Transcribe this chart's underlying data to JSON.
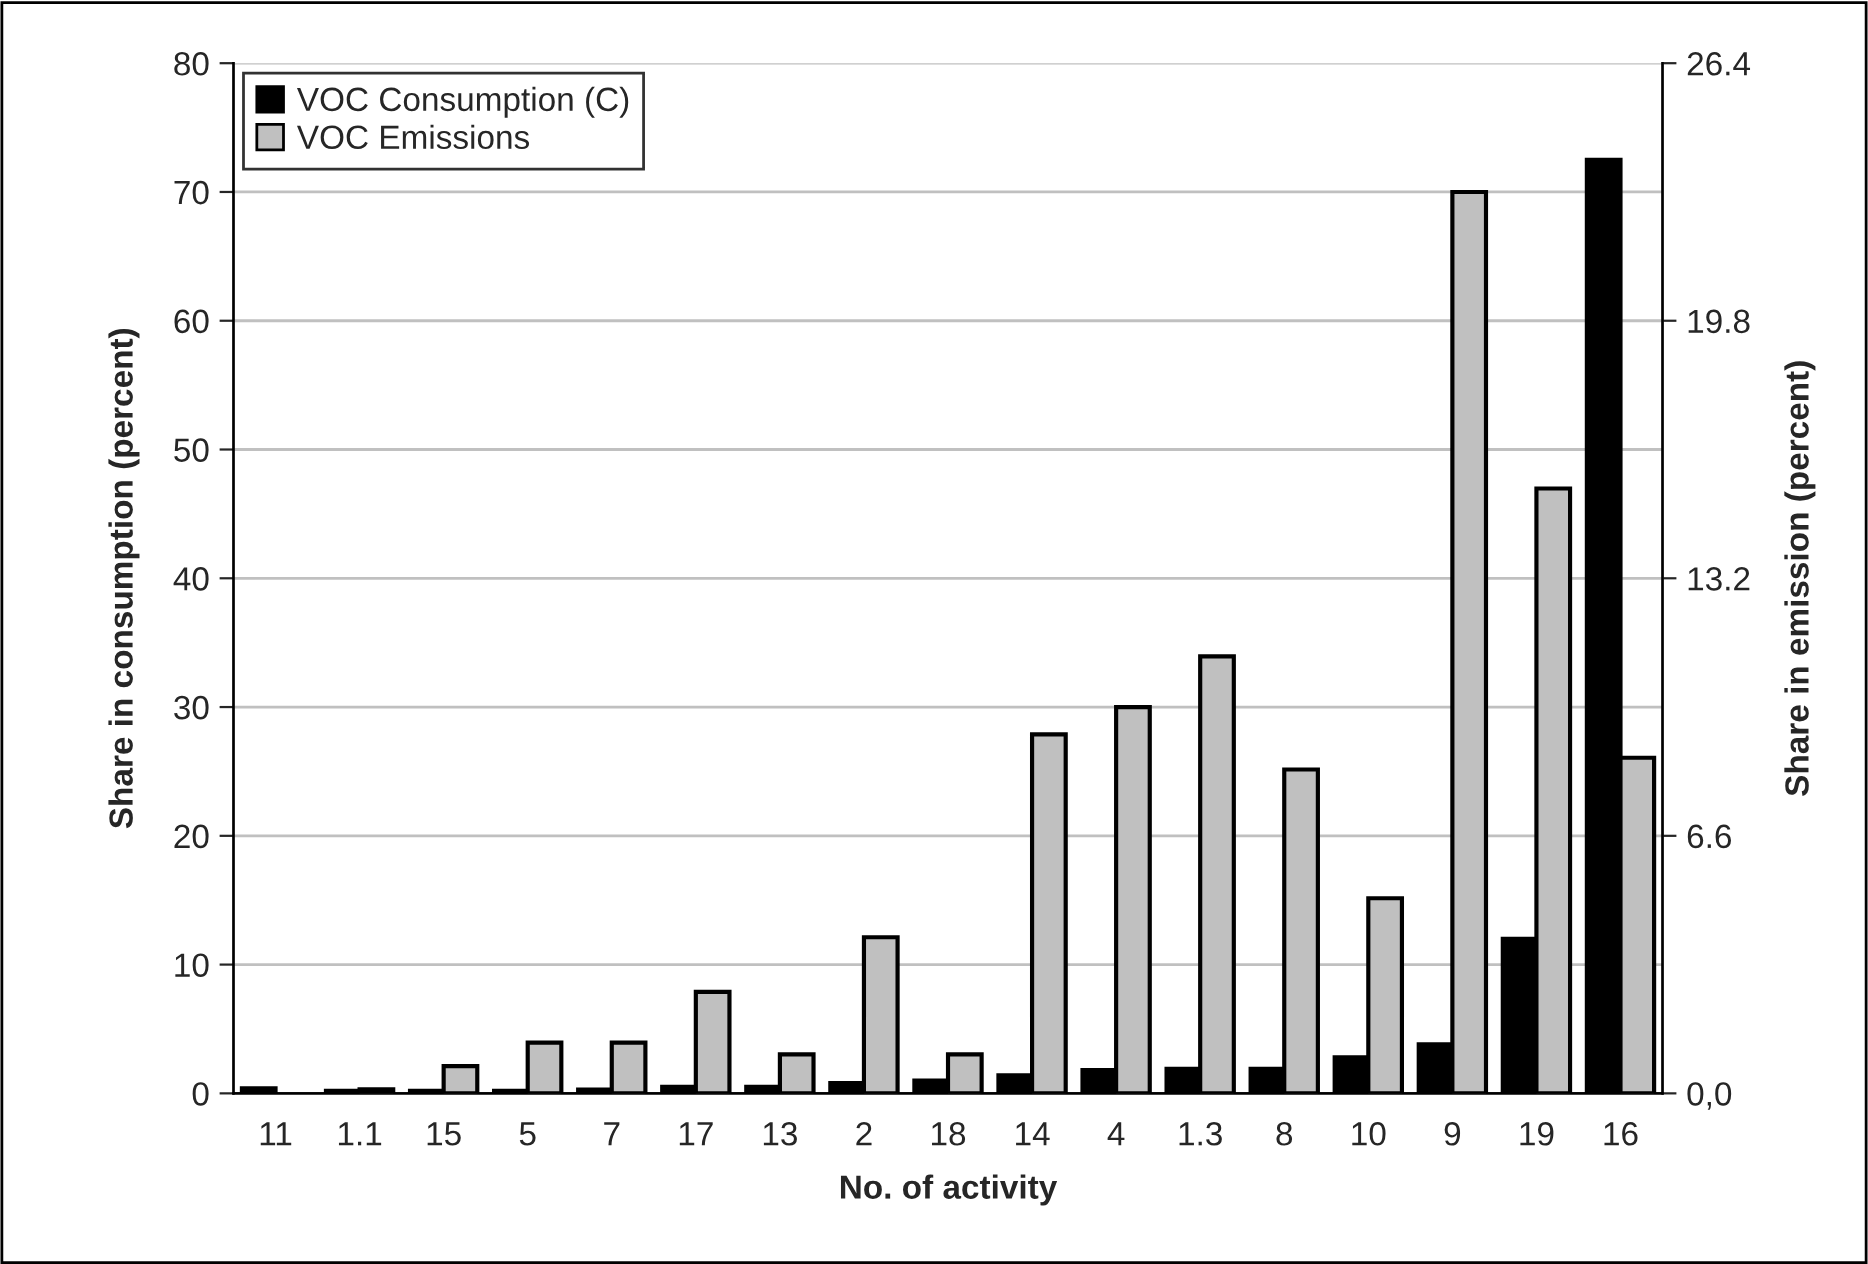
{
  "chart_data": {
    "type": "bar",
    "xlabel": "No. of activity",
    "ylabel": "Share in consumption (percent)",
    "y2label": "Share in emission (percent)",
    "categories": [
      "11",
      "1.1",
      "15",
      "5",
      "7",
      "17",
      "13",
      "2",
      "18",
      "14",
      "4",
      "1.3",
      "8",
      "10",
      "9",
      "19",
      "16"
    ],
    "series": [
      {
        "name": "VOC Consumption (C)",
        "color": "#000000",
        "values": [
          0.4,
          0.2,
          0.2,
          0.2,
          0.3,
          0.5,
          0.5,
          0.8,
          1.0,
          1.4,
          1.8,
          1.9,
          1.9,
          2.8,
          3.8,
          12,
          72.5
        ]
      },
      {
        "name": "VOC Emissions",
        "color": "#c0c0c0",
        "axis": "y2",
        "values": [
          null,
          0.1,
          0.7,
          1.3,
          1.3,
          2.6,
          1.0,
          4.0,
          1.0,
          9.2,
          9.9,
          11.2,
          8.3,
          5.0,
          23.1,
          15.5,
          8.6
        ]
      }
    ],
    "ylim": [
      0,
      80
    ],
    "yticks": [
      0,
      10,
      20,
      30,
      40,
      50,
      60,
      70,
      80
    ],
    "y2lim": [
      0,
      26.4
    ],
    "y2ticks": [
      {
        "value": 0,
        "label": "0,0"
      },
      6.6,
      13.2,
      19.8,
      26.4
    ],
    "grid": "y",
    "legend": "top left"
  }
}
